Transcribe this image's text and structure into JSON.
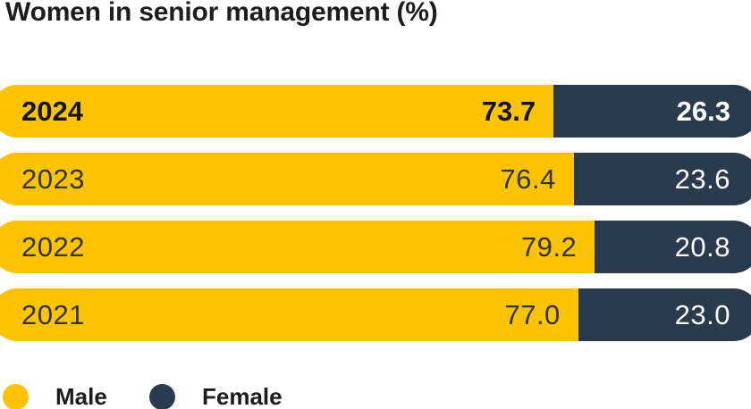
{
  "title": "Women in senior management (%)",
  "colors": {
    "male": "#FCC301",
    "female": "#2A3B4D",
    "text_dark": "#1D1D1B",
    "value_on_dark": "#FFFFFF",
    "background": "#FFFFFF"
  },
  "chart_data": {
    "type": "bar",
    "orientation": "horizontal",
    "stacked": true,
    "unit": "%",
    "title": "Women in senior management (%)",
    "categories": [
      "2024",
      "2023",
      "2022",
      "2021"
    ],
    "series": [
      {
        "name": "Male",
        "values": [
          73.7,
          76.4,
          79.2,
          77.0
        ]
      },
      {
        "name": "Female",
        "values": [
          26.3,
          23.6,
          20.8,
          23.0
        ]
      }
    ],
    "xlim": [
      0,
      100
    ],
    "grid": false,
    "legend_position": "bottom",
    "highlighted_category": "2024"
  },
  "rows": [
    {
      "year": "2024",
      "male": "73.7",
      "female": "26.3",
      "male_pct": 73.7,
      "emphasis": true
    },
    {
      "year": "2023",
      "male": "76.4",
      "female": "23.6",
      "male_pct": 76.4,
      "emphasis": false
    },
    {
      "year": "2022",
      "male": "79.2",
      "female": "20.8",
      "male_pct": 79.2,
      "emphasis": false
    },
    {
      "year": "2021",
      "male": "77.0",
      "female": "23.0",
      "male_pct": 77.0,
      "emphasis": false
    }
  ],
  "legend": [
    {
      "label": "Male",
      "color_key": "male"
    },
    {
      "label": "Female",
      "color_key": "female"
    }
  ]
}
